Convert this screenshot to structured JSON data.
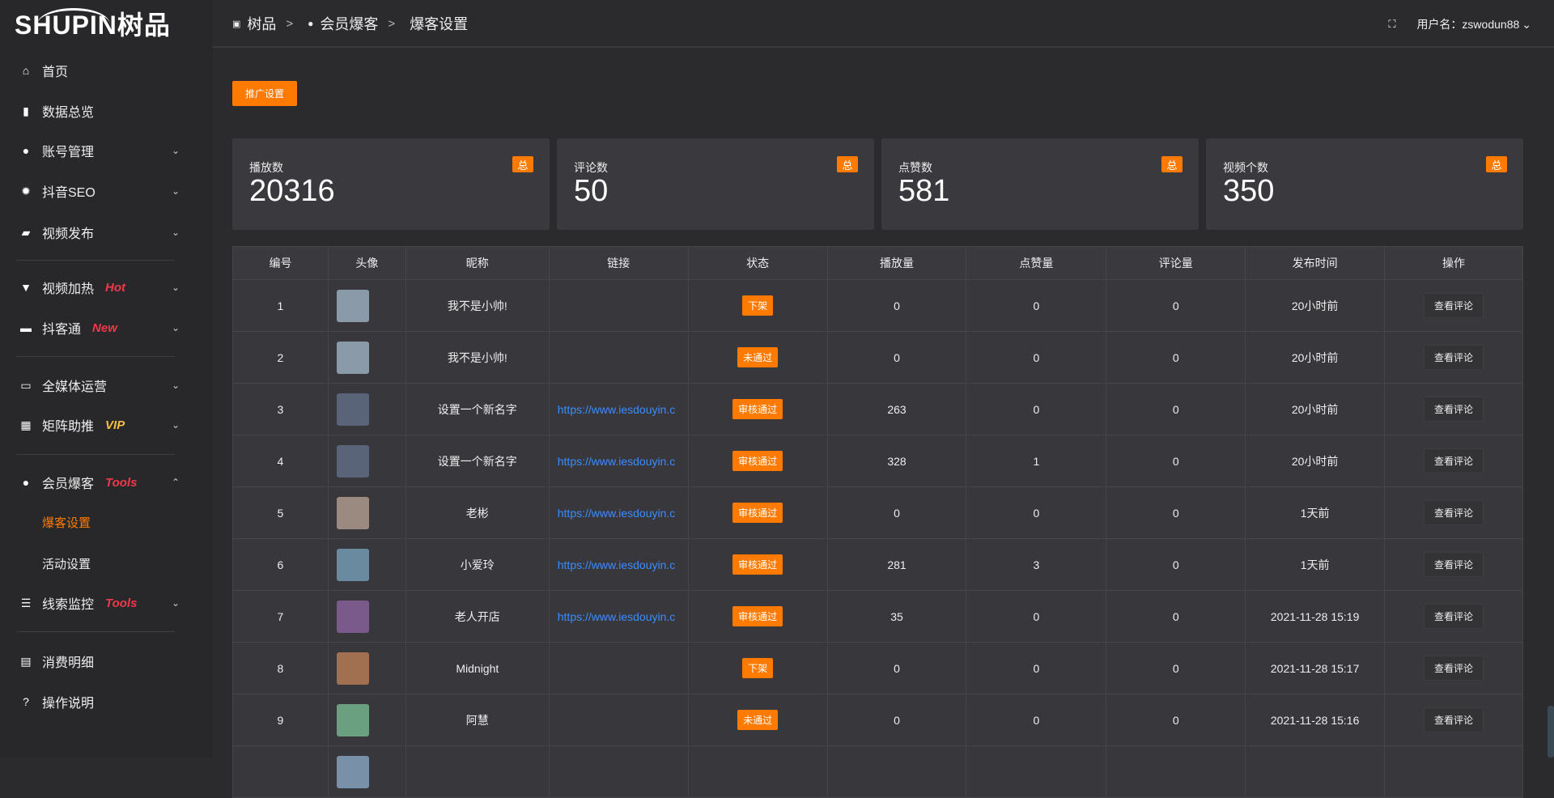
{
  "app": {
    "logo": "SHUPIN树品",
    "accent": "#ff7a00"
  },
  "sidebar": {
    "items": [
      {
        "label": "首页",
        "icon": "home-icon",
        "glyph": "⌂"
      },
      {
        "label": "数据总览",
        "icon": "bar-chart-icon",
        "glyph": "▮"
      },
      {
        "label": "账号管理",
        "icon": "user-icon",
        "glyph": "●",
        "chev": "⌄"
      },
      {
        "label": "抖音SEO",
        "icon": "gear-icon",
        "glyph": "✹",
        "chev": "⌄"
      },
      {
        "label": "视频发布",
        "icon": "camera-icon",
        "glyph": "▰",
        "chev": "⌄"
      },
      {
        "label": "视频加热",
        "icon": "flag-icon",
        "glyph": "▼",
        "tag": "Hot",
        "chev": "⌄"
      },
      {
        "label": "抖客通",
        "icon": "chat-icon",
        "glyph": "▬",
        "tag": "New",
        "chev": "⌄"
      },
      {
        "label": "全媒体运营",
        "icon": "monitor-icon",
        "glyph": "▭",
        "chev": "⌄"
      },
      {
        "label": "矩阵助推",
        "icon": "grid-icon",
        "glyph": "▦",
        "tag": "VIP",
        "chev": "⌄"
      },
      {
        "label": "会员爆客",
        "icon": "member-icon",
        "glyph": "●",
        "tag": "Tools",
        "chev": "⌃"
      },
      {
        "label": "线索监控",
        "icon": "sliders-icon",
        "glyph": "☰",
        "tag": "Tools",
        "chev": "⌄"
      },
      {
        "label": "消费明细",
        "icon": "wallet-icon",
        "glyph": "▤"
      },
      {
        "label": "操作说明",
        "icon": "help-icon",
        "glyph": "?"
      }
    ],
    "sub": [
      {
        "label": "爆客设置",
        "active": true
      },
      {
        "label": "活动设置"
      }
    ]
  },
  "header": {
    "breadcrumb": [
      "树品",
      "会员爆客",
      "爆客设置"
    ],
    "user_label": "用户名：zswodun88"
  },
  "main": {
    "promo_button": "推广设置",
    "stats": [
      {
        "label": "播放数",
        "value": "20316",
        "badge": "总"
      },
      {
        "label": "评论数",
        "value": "50",
        "badge": "总"
      },
      {
        "label": "点赞数",
        "value": "581",
        "badge": "总"
      },
      {
        "label": "视频个数",
        "value": "350",
        "badge": "总"
      }
    ],
    "columns": [
      "编号",
      "头像",
      "昵称",
      "链接",
      "状态",
      "播放量",
      "点赞量",
      "评论量",
      "发布时间",
      "操作"
    ],
    "rows": [
      {
        "id": "1",
        "nick": "我不是小帅!",
        "link": "",
        "status": "下架",
        "play": "0",
        "like": "0",
        "comment": "0",
        "time": "20小时前",
        "op": "查看评论",
        "avatar": "#8a9aa8"
      },
      {
        "id": "2",
        "nick": "我不是小帅!",
        "link": "",
        "status": "未通过",
        "play": "0",
        "like": "0",
        "comment": "0",
        "time": "20小时前",
        "op": "查看评论",
        "avatar": "#8a9aa8"
      },
      {
        "id": "3",
        "nick": "设置一个新名字",
        "link": "https://www.iesdouyin.c",
        "status": "审核通过",
        "play": "263",
        "like": "0",
        "comment": "0",
        "time": "20小时前",
        "op": "查看评论",
        "avatar": "#5a6478"
      },
      {
        "id": "4",
        "nick": "设置一个新名字",
        "link": "https://www.iesdouyin.c",
        "status": "审核通过",
        "play": "328",
        "like": "1",
        "comment": "0",
        "time": "20小时前",
        "op": "查看评论",
        "avatar": "#5a6478"
      },
      {
        "id": "5",
        "nick": "老彬",
        "link": "https://www.iesdouyin.c",
        "status": "审核通过",
        "play": "0",
        "like": "0",
        "comment": "0",
        "time": "1天前",
        "op": "查看评论",
        "avatar": "#9a8a80"
      },
      {
        "id": "6",
        "nick": "小爱玲",
        "link": "https://www.iesdouyin.c",
        "status": "审核通过",
        "play": "281",
        "like": "3",
        "comment": "0",
        "time": "1天前",
        "op": "查看评论",
        "avatar": "#6a8aa0"
      },
      {
        "id": "7",
        "nick": "老人开店",
        "link": "https://www.iesdouyin.c",
        "status": "审核通过",
        "play": "35",
        "like": "0",
        "comment": "0",
        "time": "2021-11-28 15:19",
        "op": "查看评论",
        "avatar": "#7a5a8a"
      },
      {
        "id": "8",
        "nick": "Midnight",
        "link": "",
        "status": "下架",
        "play": "0",
        "like": "0",
        "comment": "0",
        "time": "2021-11-28 15:17",
        "op": "查看评论",
        "avatar": "#a07050"
      },
      {
        "id": "9",
        "nick": "阿慧",
        "link": "",
        "status": "未通过",
        "play": "0",
        "like": "0",
        "comment": "0",
        "time": "2021-11-28 15:16",
        "op": "查看评论",
        "avatar": "#6aa080"
      },
      {
        "id": "",
        "nick": "",
        "link": "",
        "status": "",
        "play": "",
        "like": "",
        "comment": "",
        "time": "",
        "op": "",
        "avatar": "#7890a8"
      }
    ]
  }
}
